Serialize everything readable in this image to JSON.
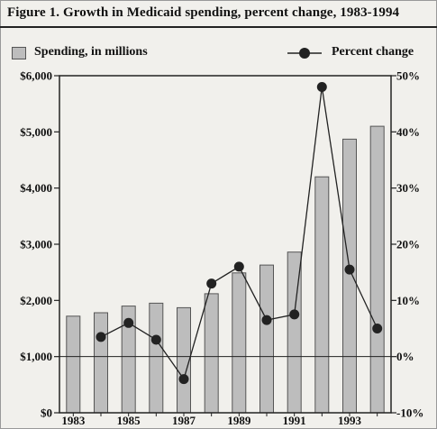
{
  "title": "Figure 1. Growth in Medicaid spending, percent change, 1983-1994",
  "legend": {
    "bar_label": "Spending, in millions",
    "line_label": "Percent change"
  },
  "colors": {
    "background": "#f1f0ec",
    "bar_fill": "#bdbdbd",
    "line": "#222222",
    "marker": "#222222"
  },
  "chart_data": {
    "type": "bar",
    "title": "Figure 1. Growth in Medicaid spending, percent change, 1983-1994",
    "categories": [
      "1983",
      "1984",
      "1985",
      "1986",
      "1987",
      "1988",
      "1989",
      "1990",
      "1991",
      "1992",
      "1993",
      "1994"
    ],
    "x_tick_labels": [
      "1983",
      "1985",
      "1987",
      "1989",
      "1991",
      "1993"
    ],
    "series": [
      {
        "name": "Spending, in millions",
        "type": "bar",
        "axis": "left",
        "values": [
          1720,
          1780,
          1900,
          1950,
          1870,
          2120,
          2490,
          2630,
          2860,
          4200,
          4870,
          5100
        ]
      },
      {
        "name": "Percent change",
        "type": "line",
        "axis": "right",
        "values": [
          null,
          3.5,
          6,
          3,
          -4,
          13,
          16,
          6.5,
          7.5,
          48,
          15.5,
          5
        ]
      }
    ],
    "ylim_left": [
      0,
      6000
    ],
    "left_ticks": [
      0,
      1000,
      2000,
      3000,
      4000,
      5000,
      6000
    ],
    "left_tick_labels": [
      "$0",
      "$1,000",
      "$2,000",
      "$3,000",
      "$4,000",
      "$5,000",
      "$6,000"
    ],
    "ylim_right": [
      -10,
      50
    ],
    "right_ticks": [
      -10,
      0,
      10,
      20,
      30,
      40,
      50
    ],
    "right_tick_labels": [
      "-10%",
      "0%",
      "10%",
      "20%",
      "30%",
      "40%",
      "50%"
    ],
    "grid": false,
    "legend_position": "top"
  }
}
